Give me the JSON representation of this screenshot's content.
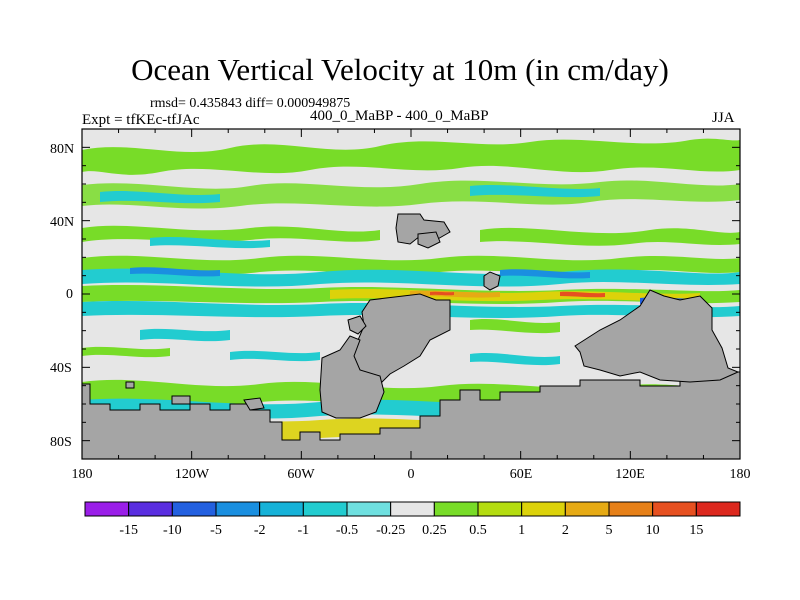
{
  "title": "Ocean Vertical Velocity at 10m (in cm/day)",
  "rmsd_line": "rmsd= 0.435843 diff= 0.000949875",
  "experiment": "Expt = tfKEc-tfJAc",
  "periods": "400_0_MaBP - 400_0_MaBP",
  "season": "JJA",
  "y_ticks": [
    "80N",
    "40N",
    "0",
    "40S",
    "80S"
  ],
  "x_ticks": [
    "180",
    "120W",
    "60W",
    "0",
    "60E",
    "120E",
    "180"
  ],
  "colorbar": {
    "labels": [
      "-15",
      "-10",
      "-5",
      "-2",
      "-1",
      "-0.5",
      "-0.25",
      "0.25",
      "0.5",
      "1",
      "2",
      "5",
      "10",
      "15"
    ],
    "colors": [
      "#9a1ee8",
      "#5a2ee0",
      "#2360e0",
      "#1a8fe0",
      "#16b2d8",
      "#22ccd0",
      "#6fe0e0",
      "#e6e6e6",
      "#78dc28",
      "#b4dc10",
      "#dcd20a",
      "#e6aa14",
      "#e68018",
      "#e65020",
      "#dc281e"
    ]
  },
  "legend_colors": {
    "land": "#a5a5a5",
    "zero_band": "#e6e6e6"
  }
}
